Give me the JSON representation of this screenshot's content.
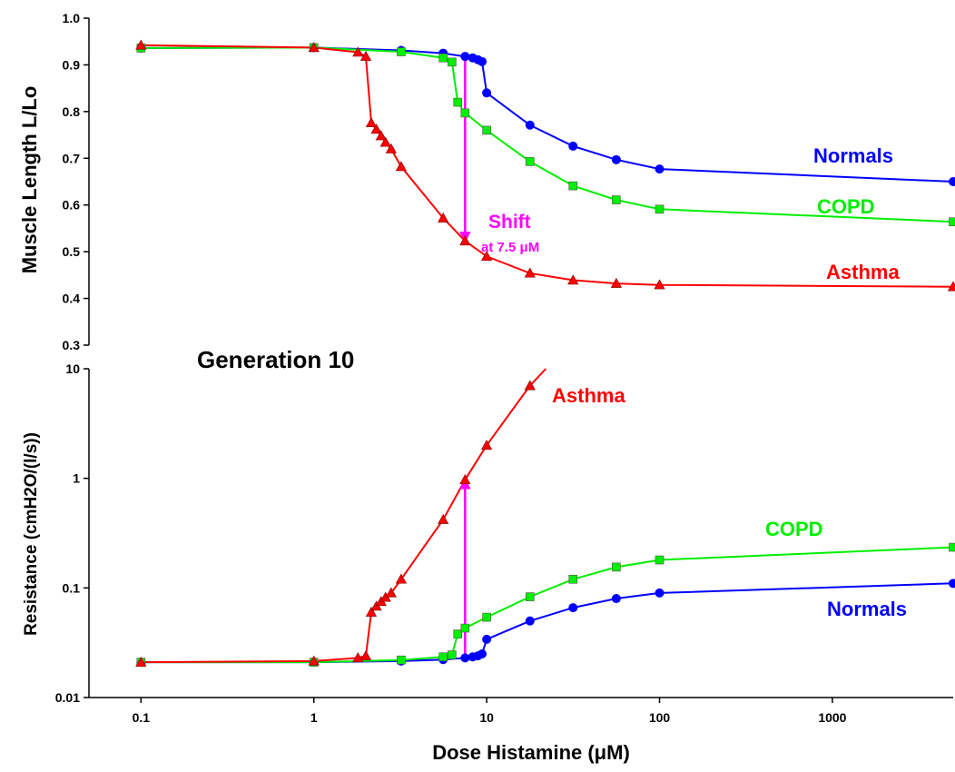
{
  "chart_data": [
    {
      "type": "line",
      "panel": "top",
      "ylabel": "Muscle Length L/Lo",
      "xlabel": "",
      "xscale": "log",
      "xlim": [
        0.05,
        5000
      ],
      "ylim": [
        0.3,
        1.0
      ],
      "y_ticks": [
        "0.3",
        "0.4",
        "0.5",
        "0.6",
        "0.7",
        "0.8",
        "0.9",
        "1.0"
      ],
      "colors": {
        "Normals": "#0000ff",
        "COPD": "#00ee00",
        "Asthma": "#ff0000",
        "shift": "#ff00ff"
      },
      "series": [
        {
          "name": "Normals",
          "marker": "circle",
          "x": [
            0.1,
            1,
            3.2,
            5.6,
            7.5,
            8.3,
            8.9,
            9.4,
            10,
            17.8,
            31.6,
            56.2,
            100,
            5000
          ],
          "y": [
            0.936,
            0.937,
            0.931,
            0.925,
            0.918,
            0.915,
            0.911,
            0.907,
            0.84,
            0.771,
            0.726,
            0.697,
            0.677,
            0.65
          ]
        },
        {
          "name": "COPD",
          "marker": "square",
          "x": [
            0.1,
            1,
            3.2,
            5.6,
            6.3,
            6.8,
            7.5,
            10,
            17.8,
            31.6,
            56.2,
            100,
            5000
          ],
          "y": [
            0.936,
            0.937,
            0.928,
            0.915,
            0.906,
            0.82,
            0.797,
            0.76,
            0.693,
            0.641,
            0.611,
            0.591,
            0.564
          ]
        },
        {
          "name": "Asthma",
          "marker": "triangle",
          "x": [
            0.1,
            1,
            1.8,
            2.0,
            2.15,
            2.3,
            2.45,
            2.6,
            2.8,
            3.2,
            5.6,
            7.5,
            10,
            17.8,
            31.6,
            56.2,
            100,
            5000
          ],
          "y": [
            0.942,
            0.937,
            0.927,
            0.918,
            0.776,
            0.762,
            0.748,
            0.734,
            0.72,
            0.682,
            0.572,
            0.523,
            0.49,
            0.454,
            0.439,
            0.432,
            0.429,
            0.425
          ]
        }
      ],
      "annotations": [
        {
          "text": "Shift",
          "subtext": "at 7.5 μM",
          "x": 7.5,
          "y_from": 0.918,
          "y_to": 0.523
        }
      ],
      "series_labels": [
        "Normals",
        "COPD",
        "Asthma"
      ]
    },
    {
      "type": "line",
      "panel": "bottom",
      "title": "Generation 10",
      "ylabel": "Resistance (cmH2O/(l/s))",
      "xlabel": "Dose Histamine (μM)",
      "xscale": "log",
      "yscale": "log",
      "xlim": [
        0.05,
        5000
      ],
      "ylim": [
        0.01,
        10
      ],
      "x_ticks": [
        "0.1",
        "1",
        "10",
        "100",
        "1000"
      ],
      "y_ticks": [
        "0.01",
        "0.1",
        "1",
        "10"
      ],
      "series": [
        {
          "name": "Normals",
          "marker": "circle",
          "x": [
            0.1,
            1,
            3.2,
            5.6,
            7.5,
            8.3,
            8.9,
            9.4,
            10,
            17.8,
            31.6,
            56.2,
            100,
            5000
          ],
          "y": [
            0.021,
            0.021,
            0.0215,
            0.0222,
            0.023,
            0.0235,
            0.024,
            0.025,
            0.034,
            0.05,
            0.066,
            0.08,
            0.09,
            0.11
          ]
        },
        {
          "name": "COPD",
          "marker": "square",
          "x": [
            0.1,
            1,
            3.2,
            5.6,
            6.3,
            6.8,
            7.5,
            10,
            17.8,
            31.6,
            56.2,
            100,
            5000
          ],
          "y": [
            0.021,
            0.021,
            0.022,
            0.0235,
            0.0245,
            0.038,
            0.043,
            0.054,
            0.083,
            0.12,
            0.155,
            0.18,
            0.235
          ]
        },
        {
          "name": "Asthma",
          "marker": "triangle",
          "x": [
            0.1,
            1,
            1.8,
            2.0,
            2.15,
            2.3,
            2.45,
            2.6,
            2.8,
            3.2,
            5.6,
            7.5,
            10,
            17.8,
            22
          ],
          "y": [
            0.021,
            0.0215,
            0.023,
            0.024,
            0.06,
            0.068,
            0.075,
            0.082,
            0.09,
            0.12,
            0.42,
            0.97,
            2.0,
            7.0,
            10.5
          ]
        }
      ],
      "annotations": [
        {
          "x": 7.5,
          "y_from": 0.023,
          "y_to": 0.97
        }
      ],
      "series_labels": [
        "Asthma",
        "COPD",
        "Normals"
      ]
    }
  ]
}
